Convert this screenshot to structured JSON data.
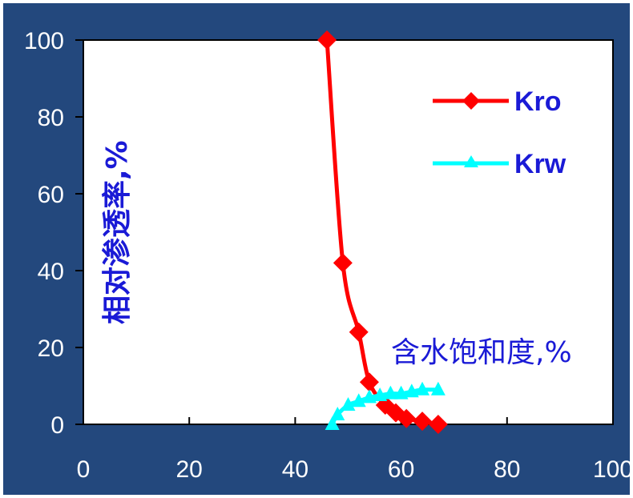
{
  "chart_data": {
    "type": "line",
    "ylabel": "相对渗透率,%",
    "xlabel": "含水饱和度,%",
    "xlim": [
      0,
      100
    ],
    "ylim": [
      0,
      100
    ],
    "x_ticks": [
      "0",
      "20",
      "40",
      "60",
      "80",
      "100"
    ],
    "y_ticks": [
      "0",
      "20",
      "40",
      "60",
      "80",
      "100"
    ],
    "grid": false,
    "legend": "top-right",
    "series": [
      {
        "name": "Kro",
        "color": "#ff0000",
        "marker": "diamond",
        "points": [
          [
            46,
            100
          ],
          [
            49,
            42
          ],
          [
            52,
            24
          ],
          [
            54,
            11
          ],
          [
            57,
            5
          ],
          [
            59,
            3
          ],
          [
            61,
            1.5
          ],
          [
            64,
            0.8
          ],
          [
            67,
            0
          ]
        ]
      },
      {
        "name": "Krw",
        "color": "#00ffff",
        "marker": "triangle",
        "points": [
          [
            47,
            0
          ],
          [
            48,
            2.5
          ],
          [
            50,
            5
          ],
          [
            52,
            6
          ],
          [
            54,
            7
          ],
          [
            56,
            7.5
          ],
          [
            58,
            8
          ],
          [
            60,
            8
          ],
          [
            62,
            8.5
          ],
          [
            64,
            9
          ],
          [
            67,
            9
          ]
        ]
      }
    ]
  }
}
